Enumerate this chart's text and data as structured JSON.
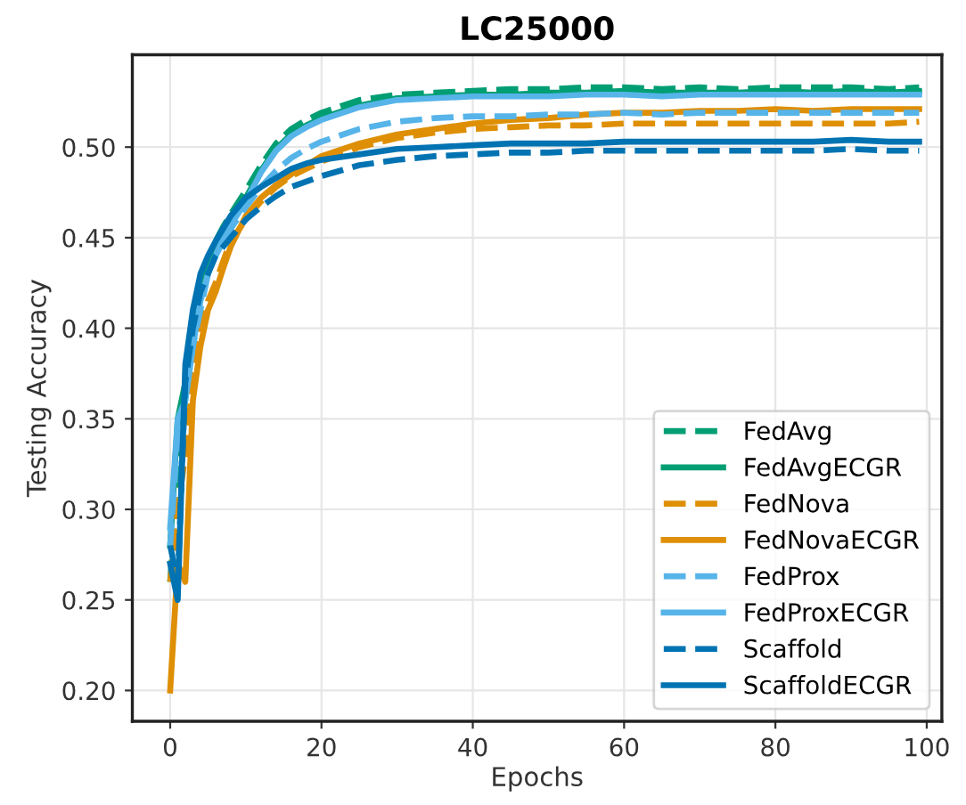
{
  "chart_data": {
    "type": "line",
    "title": "LC25000",
    "xlabel": "Epochs",
    "ylabel": "Testing Accuracy",
    "x": [
      0,
      1,
      2,
      3,
      4,
      5,
      6,
      7,
      8,
      10,
      12,
      14,
      16,
      18,
      20,
      25,
      30,
      35,
      40,
      45,
      50,
      55,
      60,
      65,
      70,
      75,
      80,
      85,
      90,
      95,
      99
    ],
    "xlim": [
      -5,
      102
    ],
    "ylim": [
      0.183,
      0.551
    ],
    "xticks": [
      0,
      20,
      40,
      60,
      80,
      100
    ],
    "yticks": [
      {
        "value": 0.2,
        "label": "0.20"
      },
      {
        "value": 0.25,
        "label": "0.25"
      },
      {
        "value": 0.3,
        "label": "0.30"
      },
      {
        "value": 0.35,
        "label": "0.35"
      },
      {
        "value": 0.4,
        "label": "0.40"
      },
      {
        "value": 0.45,
        "label": "0.45"
      },
      {
        "value": 0.5,
        "label": "0.50"
      }
    ],
    "grid": true,
    "legend": "bottom right",
    "marker": "none",
    "series": [
      {
        "name": "FedAvg",
        "color": "#029e73",
        "line_style": "dashed",
        "values": [
          0.26,
          0.32,
          0.36,
          0.395,
          0.42,
          0.437,
          0.448,
          0.456,
          0.463,
          0.476,
          0.49,
          0.502,
          0.51,
          0.515,
          0.519,
          0.526,
          0.529,
          0.53,
          0.531,
          0.532,
          0.532,
          0.533,
          0.533,
          0.532,
          0.533,
          0.532,
          0.533,
          0.533,
          0.533,
          0.532,
          0.533
        ]
      },
      {
        "name": "FedAvgECGR",
        "color": "#029e73",
        "line_style": "solid",
        "values": [
          0.28,
          0.35,
          0.37,
          0.4,
          0.42,
          0.435,
          0.446,
          0.453,
          0.46,
          0.472,
          0.487,
          0.499,
          0.507,
          0.512,
          0.516,
          0.523,
          0.527,
          0.528,
          0.529,
          0.529,
          0.53,
          0.53,
          0.531,
          0.53,
          0.53,
          0.53,
          0.531,
          0.53,
          0.531,
          0.53,
          0.531
        ]
      },
      {
        "name": "FedNova",
        "color": "#de8f05",
        "line_style": "dashed",
        "values": [
          0.26,
          0.3,
          0.33,
          0.37,
          0.4,
          0.415,
          0.425,
          0.437,
          0.448,
          0.46,
          0.47,
          0.478,
          0.484,
          0.488,
          0.492,
          0.5,
          0.505,
          0.508,
          0.51,
          0.511,
          0.512,
          0.512,
          0.513,
          0.513,
          0.513,
          0.513,
          0.513,
          0.513,
          0.513,
          0.513,
          0.514
        ]
      },
      {
        "name": "FedNovaECGR",
        "color": "#de8f05",
        "line_style": "solid",
        "values": [
          0.2,
          0.27,
          0.26,
          0.36,
          0.39,
          0.41,
          0.42,
          0.433,
          0.445,
          0.462,
          0.472,
          0.479,
          0.485,
          0.49,
          0.495,
          0.502,
          0.507,
          0.51,
          0.513,
          0.515,
          0.516,
          0.518,
          0.519,
          0.519,
          0.52,
          0.52,
          0.521,
          0.52,
          0.521,
          0.521,
          0.521
        ]
      },
      {
        "name": "FedProx",
        "color": "#56b4e9",
        "line_style": "dashed",
        "values": [
          0.28,
          0.34,
          0.36,
          0.39,
          0.41,
          0.43,
          0.44,
          0.448,
          0.455,
          0.467,
          0.478,
          0.487,
          0.494,
          0.499,
          0.503,
          0.51,
          0.514,
          0.516,
          0.517,
          0.517,
          0.518,
          0.518,
          0.519,
          0.518,
          0.519,
          0.519,
          0.519,
          0.519,
          0.519,
          0.519,
          0.519
        ]
      },
      {
        "name": "FedProxECGR",
        "color": "#56b4e9",
        "line_style": "solid",
        "values": [
          0.29,
          0.35,
          0.36,
          0.39,
          0.415,
          0.43,
          0.44,
          0.45,
          0.457,
          0.47,
          0.486,
          0.498,
          0.506,
          0.511,
          0.515,
          0.522,
          0.526,
          0.527,
          0.528,
          0.528,
          0.528,
          0.529,
          0.529,
          0.528,
          0.529,
          0.529,
          0.529,
          0.529,
          0.529,
          0.529,
          0.529
        ]
      },
      {
        "name": "Scaffold",
        "color": "#0173b2",
        "line_style": "dashed",
        "values": [
          0.28,
          0.26,
          0.37,
          0.4,
          0.42,
          0.43,
          0.44,
          0.445,
          0.45,
          0.46,
          0.467,
          0.473,
          0.478,
          0.481,
          0.484,
          0.49,
          0.493,
          0.495,
          0.496,
          0.497,
          0.497,
          0.498,
          0.498,
          0.498,
          0.498,
          0.498,
          0.498,
          0.498,
          0.499,
          0.498,
          0.498
        ]
      },
      {
        "name": "ScaffoldECGR",
        "color": "#0173b2",
        "line_style": "solid",
        "values": [
          0.27,
          0.25,
          0.38,
          0.41,
          0.43,
          0.44,
          0.448,
          0.455,
          0.462,
          0.472,
          0.478,
          0.483,
          0.488,
          0.491,
          0.493,
          0.496,
          0.499,
          0.5,
          0.501,
          0.502,
          0.502,
          0.502,
          0.503,
          0.503,
          0.503,
          0.503,
          0.503,
          0.503,
          0.504,
          0.503,
          0.503
        ]
      }
    ]
  }
}
